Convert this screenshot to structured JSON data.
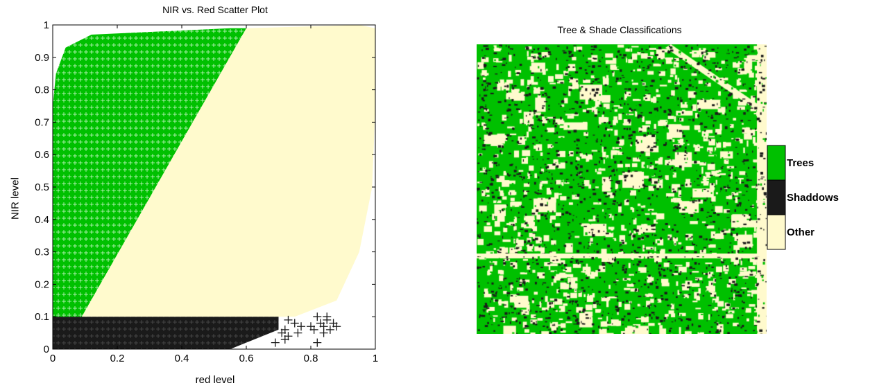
{
  "scatter": {
    "title": "NIR vs. Red Scatter Plot",
    "xlabel": "red level",
    "ylabel": "NIR level"
  },
  "map": {
    "title": "Tree & Shade Classifications"
  },
  "chart_data": [
    {
      "type": "scatter",
      "title": "NIR vs. Red Scatter Plot",
      "xlabel": "red level",
      "ylabel": "NIR level",
      "xlim": [
        0,
        1
      ],
      "ylim": [
        0,
        1
      ],
      "xticks": [
        0,
        0.2,
        0.4,
        0.6,
        0.8,
        1
      ],
      "xtick_labels": [
        "0",
        "0.2",
        "0.4",
        "0.6",
        "0.8",
        "1"
      ],
      "yticks": [
        0,
        0.1,
        0.2,
        0.3,
        0.4,
        0.5,
        0.6,
        0.7,
        0.8,
        0.9,
        1
      ],
      "ytick_labels": [
        "0",
        "0.1",
        "0.2",
        "0.3",
        "0.4",
        "0.5",
        "0.6",
        "0.7",
        "0.8",
        "0.9",
        "1"
      ],
      "grid": false,
      "marker": "+",
      "regions": [
        {
          "class": "Trees",
          "color": "#00c000",
          "polygon": [
            [
              0.0,
              0.1
            ],
            [
              0.09,
              0.1
            ],
            [
              0.6,
              0.99
            ],
            [
              0.55,
              0.99
            ],
            [
              0.12,
              0.97
            ],
            [
              0.04,
              0.93
            ],
            [
              0.01,
              0.85
            ],
            [
              0.0,
              0.75
            ]
          ]
        },
        {
          "class": "Other",
          "color": "#fffacd",
          "polygon": [
            [
              0.09,
              0.1
            ],
            [
              0.75,
              0.1
            ],
            [
              0.88,
              0.15
            ],
            [
              0.95,
              0.3
            ],
            [
              0.99,
              0.5
            ],
            [
              1.0,
              0.75
            ],
            [
              1.0,
              0.99
            ],
            [
              0.95,
              1.0
            ],
            [
              0.6,
              0.99
            ]
          ]
        },
        {
          "class": "Shaddows",
          "color": "#1a1a1a",
          "polygon": [
            [
              0.0,
              0.0
            ],
            [
              0.0,
              0.1
            ],
            [
              0.7,
              0.1
            ],
            [
              0.7,
              0.06
            ],
            [
              0.6,
              0.02
            ],
            [
              0.55,
              0.0
            ]
          ]
        }
      ],
      "stray_points": [
        {
          "class": "Shaddows",
          "color": "#1a1a1a",
          "points": [
            [
              0.73,
              0.09
            ],
            [
              0.72,
              0.06
            ],
            [
              0.71,
              0.05
            ],
            [
              0.75,
              0.08
            ],
            [
              0.77,
              0.07
            ],
            [
              0.73,
              0.04
            ],
            [
              0.76,
              0.05
            ],
            [
              0.72,
              0.03
            ],
            [
              0.69,
              0.02
            ],
            [
              0.8,
              0.07
            ],
            [
              0.82,
              0.1
            ],
            [
              0.83,
              0.08
            ],
            [
              0.84,
              0.07
            ],
            [
              0.85,
              0.09
            ],
            [
              0.86,
              0.06
            ],
            [
              0.87,
              0.08
            ],
            [
              0.84,
              0.05
            ],
            [
              0.88,
              0.07
            ],
            [
              0.81,
              0.06
            ],
            [
              0.82,
              0.02
            ],
            [
              0.85,
              0.1
            ]
          ]
        }
      ]
    },
    {
      "type": "heatmap",
      "title": "Tree & Shade Classifications",
      "legend": {
        "placement": "right",
        "entries": [
          {
            "label": "Trees",
            "color": "#00c000"
          },
          {
            "label": "Shaddows",
            "color": "#1a1a1a"
          },
          {
            "label": "Other",
            "color": "#fffacd"
          }
        ]
      }
    }
  ]
}
